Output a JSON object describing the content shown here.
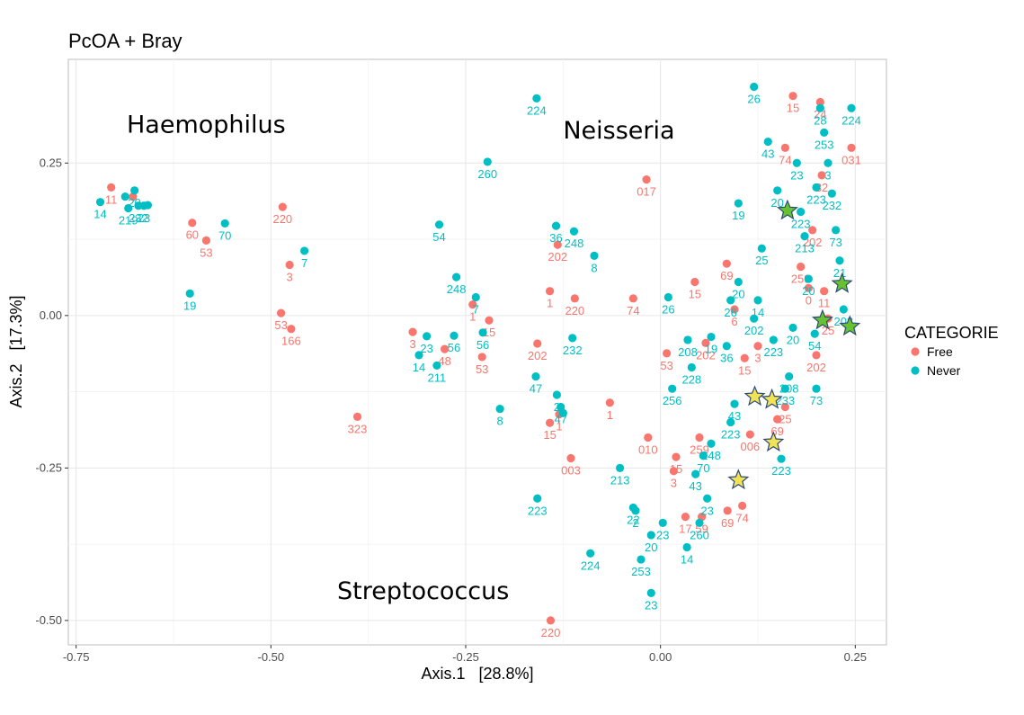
{
  "chart_data": {
    "type": "scatter",
    "title": "PcOA + Bray",
    "xlabel": "Axis.1   [28.8%]",
    "ylabel": "Axis.2   [17.3%]",
    "xlim": [
      -0.76,
      0.29
    ],
    "ylim": [
      -0.54,
      0.42
    ],
    "xticks": [
      -0.75,
      -0.5,
      -0.25,
      0.0,
      0.25
    ],
    "xtick_labels": [
      "-0.75",
      "-0.50",
      "-0.25",
      "0.00",
      "0.25"
    ],
    "yticks": [
      -0.5,
      -0.25,
      0.0,
      0.25
    ],
    "ytick_labels": [
      "-0.50",
      "-0.25",
      "0.00",
      "0.25"
    ],
    "grid": true,
    "legend": {
      "title": "CATEGORIE",
      "position": "right",
      "entries": [
        {
          "name": "Free",
          "color": "#F8766D"
        },
        {
          "name": "Never",
          "color": "#00BFC4"
        }
      ]
    },
    "annotations": [
      {
        "text": "Haemophilus",
        "x": -0.685,
        "y": 0.3
      },
      {
        "text": "Neisseria",
        "x": -0.125,
        "y": 0.29
      },
      {
        "text": "Streptococcus",
        "x": -0.415,
        "y": -0.465
      }
    ],
    "series": [
      {
        "name": "Free",
        "color": "#F8766D",
        "points": [
          {
            "x": -0.705,
            "y": 0.21,
            "label": "11"
          },
          {
            "x": -0.677,
            "y": 0.195,
            "label": ""
          },
          {
            "x": -0.601,
            "y": 0.152,
            "label": "60"
          },
          {
            "x": -0.583,
            "y": 0.123,
            "label": "53"
          },
          {
            "x": -0.485,
            "y": 0.178,
            "label": "220"
          },
          {
            "x": -0.476,
            "y": 0.083,
            "label": "3"
          },
          {
            "x": -0.487,
            "y": 0.004,
            "label": "53"
          },
          {
            "x": -0.474,
            "y": -0.022,
            "label": "166"
          },
          {
            "x": -0.389,
            "y": -0.166,
            "label": "323"
          },
          {
            "x": -0.318,
            "y": -0.027,
            "label": "3"
          },
          {
            "x": -0.277,
            "y": -0.055,
            "label": "48"
          },
          {
            "x": -0.241,
            "y": 0.018,
            "label": "1"
          },
          {
            "x": -0.229,
            "y": -0.068,
            "label": "53"
          },
          {
            "x": -0.22,
            "y": -0.008,
            "label": "15"
          },
          {
            "x": -0.158,
            "y": -0.046,
            "label": "202"
          },
          {
            "x": -0.142,
            "y": 0.04,
            "label": "1"
          },
          {
            "x": -0.132,
            "y": 0.116,
            "label": "202"
          },
          {
            "x": -0.11,
            "y": 0.028,
            "label": "220"
          },
          {
            "x": -0.142,
            "y": -0.176,
            "label": "15"
          },
          {
            "x": -0.13,
            "y": -0.162,
            "label": "1"
          },
          {
            "x": -0.115,
            "y": -0.234,
            "label": "003"
          },
          {
            "x": -0.141,
            "y": -0.5,
            "label": "220"
          },
          {
            "x": -0.065,
            "y": -0.143,
            "label": "1"
          },
          {
            "x": -0.035,
            "y": 0.028,
            "label": "74"
          },
          {
            "x": -0.018,
            "y": 0.223,
            "label": "017"
          },
          {
            "x": -0.016,
            "y": -0.2,
            "label": "010"
          },
          {
            "x": 0.008,
            "y": -0.062,
            "label": "53"
          },
          {
            "x": 0.02,
            "y": -0.232,
            "label": "15"
          },
          {
            "x": 0.017,
            "y": -0.255,
            "label": "3"
          },
          {
            "x": 0.044,
            "y": 0.055,
            "label": "15"
          },
          {
            "x": 0.05,
            "y": -0.2,
            "label": "259"
          },
          {
            "x": 0.058,
            "y": -0.045,
            "label": "202"
          },
          {
            "x": 0.032,
            "y": -0.33,
            "label": "17"
          },
          {
            "x": 0.053,
            "y": -0.33,
            "label": "59"
          },
          {
            "x": 0.086,
            "y": -0.32,
            "label": "69"
          },
          {
            "x": 0.085,
            "y": 0.085,
            "label": "69"
          },
          {
            "x": 0.095,
            "y": 0.01,
            "label": "6"
          },
          {
            "x": 0.108,
            "y": -0.07,
            "label": "15"
          },
          {
            "x": 0.125,
            "y": -0.05,
            "label": "3"
          },
          {
            "x": 0.105,
            "y": -0.312,
            "label": "74"
          },
          {
            "x": 0.115,
            "y": -0.195,
            "label": "006"
          },
          {
            "x": 0.15,
            "y": -0.17,
            "label": "69"
          },
          {
            "x": 0.16,
            "y": -0.15,
            "label": "25"
          },
          {
            "x": 0.16,
            "y": 0.275,
            "label": "74"
          },
          {
            "x": 0.17,
            "y": 0.36,
            "label": "15"
          },
          {
            "x": 0.18,
            "y": 0.08,
            "label": "259"
          },
          {
            "x": 0.19,
            "y": 0.045,
            "label": "0"
          },
          {
            "x": 0.195,
            "y": 0.14,
            "label": "202"
          },
          {
            "x": 0.2,
            "y": -0.065,
            "label": "202"
          },
          {
            "x": 0.205,
            "y": 0.35,
            "label": "24"
          },
          {
            "x": 0.207,
            "y": 0.23,
            "label": "32"
          },
          {
            "x": 0.21,
            "y": 0.04,
            "label": "11"
          },
          {
            "x": 0.215,
            "y": -0.005,
            "label": "25"
          },
          {
            "x": 0.245,
            "y": 0.275,
            "label": "031"
          }
        ]
      },
      {
        "name": "Never",
        "color": "#00BFC4",
        "points": [
          {
            "x": -0.719,
            "y": 0.186,
            "label": "14"
          },
          {
            "x": -0.687,
            "y": 0.195,
            "label": ""
          },
          {
            "x": -0.675,
            "y": 0.205,
            "label": "20"
          },
          {
            "x": -0.683,
            "y": 0.176,
            "label": "219"
          },
          {
            "x": -0.67,
            "y": 0.18,
            "label": "232"
          },
          {
            "x": -0.663,
            "y": 0.18,
            "label": "23"
          },
          {
            "x": -0.658,
            "y": 0.181,
            "label": ""
          },
          {
            "x": -0.559,
            "y": 0.151,
            "label": "70"
          },
          {
            "x": -0.604,
            "y": 0.036,
            "label": "19"
          },
          {
            "x": -0.457,
            "y": 0.106,
            "label": "7"
          },
          {
            "x": -0.284,
            "y": 0.149,
            "label": "54"
          },
          {
            "x": -0.3,
            "y": -0.034,
            "label": "23"
          },
          {
            "x": -0.31,
            "y": -0.065,
            "label": "14"
          },
          {
            "x": -0.287,
            "y": -0.082,
            "label": "211"
          },
          {
            "x": -0.265,
            "y": -0.033,
            "label": "56"
          },
          {
            "x": -0.262,
            "y": 0.063,
            "label": "248"
          },
          {
            "x": -0.237,
            "y": 0.03,
            "label": "7"
          },
          {
            "x": -0.228,
            "y": -0.028,
            "label": "56"
          },
          {
            "x": -0.222,
            "y": 0.252,
            "label": "260"
          },
          {
            "x": -0.206,
            "y": -0.153,
            "label": "8"
          },
          {
            "x": -0.159,
            "y": 0.356,
            "label": "224"
          },
          {
            "x": -0.134,
            "y": 0.147,
            "label": "36"
          },
          {
            "x": -0.111,
            "y": 0.138,
            "label": "248"
          },
          {
            "x": -0.085,
            "y": 0.098,
            "label": "8"
          },
          {
            "x": -0.113,
            "y": -0.037,
            "label": "232"
          },
          {
            "x": -0.16,
            "y": -0.1,
            "label": "47"
          },
          {
            "x": -0.133,
            "y": -0.13,
            "label": "2"
          },
          {
            "x": -0.128,
            "y": -0.15,
            "label": "47"
          },
          {
            "x": -0.125,
            "y": -0.16,
            "label": ""
          },
          {
            "x": -0.158,
            "y": -0.3,
            "label": "223"
          },
          {
            "x": -0.09,
            "y": -0.39,
            "label": "224"
          },
          {
            "x": -0.052,
            "y": -0.25,
            "label": "213"
          },
          {
            "x": -0.035,
            "y": -0.315,
            "label": "22"
          },
          {
            "x": -0.032,
            "y": -0.32,
            "label": "2"
          },
          {
            "x": -0.012,
            "y": -0.36,
            "label": "20"
          },
          {
            "x": 0.003,
            "y": -0.34,
            "label": "23"
          },
          {
            "x": -0.025,
            "y": -0.4,
            "label": "253"
          },
          {
            "x": -0.012,
            "y": -0.455,
            "label": "23"
          },
          {
            "x": 0.01,
            "y": 0.03,
            "label": "26"
          },
          {
            "x": 0.035,
            "y": -0.04,
            "label": "208"
          },
          {
            "x": 0.04,
            "y": -0.085,
            "label": "228"
          },
          {
            "x": 0.015,
            "y": -0.12,
            "label": "256"
          },
          {
            "x": 0.045,
            "y": -0.26,
            "label": "43"
          },
          {
            "x": 0.05,
            "y": -0.34,
            "label": "260"
          },
          {
            "x": 0.055,
            "y": -0.23,
            "label": "70"
          },
          {
            "x": 0.065,
            "y": -0.21,
            "label": "248"
          },
          {
            "x": 0.06,
            "y": -0.3,
            "label": "23"
          },
          {
            "x": 0.034,
            "y": -0.38,
            "label": "14"
          },
          {
            "x": 0.065,
            "y": -0.035,
            "label": "19"
          },
          {
            "x": 0.085,
            "y": -0.05,
            "label": "36"
          },
          {
            "x": 0.09,
            "y": 0.025,
            "label": "26"
          },
          {
            "x": 0.1,
            "y": 0.055,
            "label": "20"
          },
          {
            "x": 0.095,
            "y": -0.145,
            "label": "43"
          },
          {
            "x": 0.09,
            "y": -0.175,
            "label": "223"
          },
          {
            "x": 0.1,
            "y": 0.184,
            "label": "19"
          },
          {
            "x": 0.12,
            "y": 0.375,
            "label": "26"
          },
          {
            "x": 0.125,
            "y": 0.025,
            "label": "14"
          },
          {
            "x": 0.12,
            "y": -0.005,
            "label": "202"
          },
          {
            "x": 0.13,
            "y": 0.11,
            "label": "25"
          },
          {
            "x": 0.138,
            "y": 0.285,
            "label": "43"
          },
          {
            "x": 0.15,
            "y": 0.205,
            "label": "20"
          },
          {
            "x": 0.145,
            "y": -0.04,
            "label": "223"
          },
          {
            "x": 0.155,
            "y": -0.235,
            "label": "223"
          },
          {
            "x": 0.16,
            "y": -0.12,
            "label": "233"
          },
          {
            "x": 0.165,
            "y": -0.1,
            "label": "208"
          },
          {
            "x": 0.17,
            "y": -0.02,
            "label": "20"
          },
          {
            "x": 0.175,
            "y": 0.25,
            "label": "23"
          },
          {
            "x": 0.18,
            "y": 0.17,
            "label": "223"
          },
          {
            "x": 0.185,
            "y": 0.13,
            "label": "213"
          },
          {
            "x": 0.19,
            "y": 0.06,
            "label": "20"
          },
          {
            "x": 0.198,
            "y": -0.03,
            "label": "54"
          },
          {
            "x": 0.2,
            "y": 0.21,
            "label": "223"
          },
          {
            "x": 0.205,
            "y": 0.34,
            "label": "28"
          },
          {
            "x": 0.21,
            "y": 0.3,
            "label": "253"
          },
          {
            "x": 0.215,
            "y": 0.25,
            "label": "3"
          },
          {
            "x": 0.22,
            "y": 0.2,
            "label": "232"
          },
          {
            "x": 0.225,
            "y": 0.14,
            "label": "73"
          },
          {
            "x": 0.23,
            "y": 0.09,
            "label": "21"
          },
          {
            "x": 0.235,
            "y": 0.01,
            "label": "208"
          },
          {
            "x": 0.245,
            "y": 0.34,
            "label": "224"
          },
          {
            "x": 0.2,
            "y": -0.12,
            "label": "73"
          }
        ]
      }
    ],
    "star_markers": [
      {
        "x": 0.163,
        "y": 0.172,
        "color": "#66C22E"
      },
      {
        "x": 0.233,
        "y": 0.052,
        "color": "#66C22E"
      },
      {
        "x": 0.208,
        "y": -0.008,
        "color": "#66C22E"
      },
      {
        "x": 0.243,
        "y": -0.018,
        "color": "#66C22E"
      },
      {
        "x": 0.121,
        "y": -0.133,
        "color": "#F2E255"
      },
      {
        "x": 0.143,
        "y": -0.138,
        "color": "#F2E255"
      },
      {
        "x": 0.145,
        "y": -0.208,
        "color": "#F2E255"
      },
      {
        "x": 0.1,
        "y": -0.27,
        "color": "#F2E255"
      }
    ]
  }
}
